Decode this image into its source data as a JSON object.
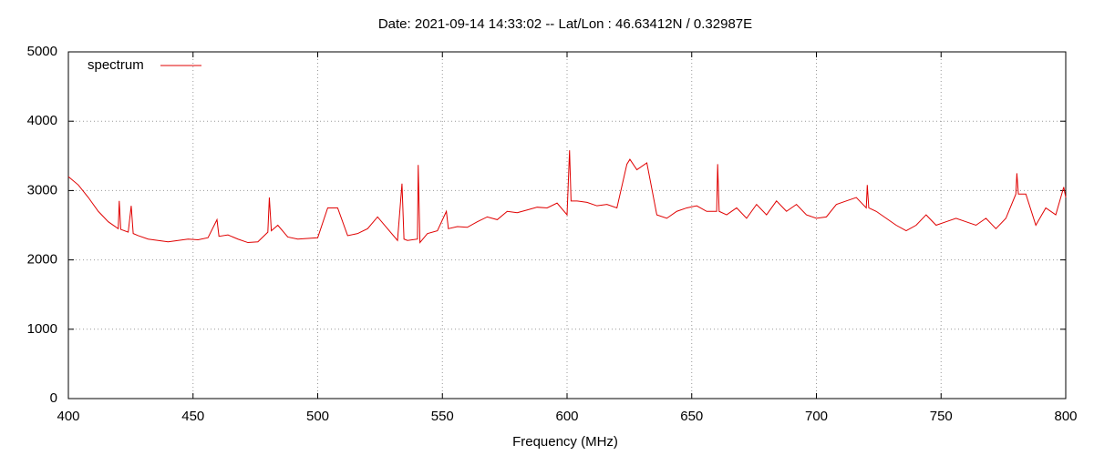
{
  "chart_data": {
    "type": "line",
    "title": "Date: 2021-09-14 14:33:02  --  Lat/Lon : 46.63412N / 0.32987E",
    "xlabel": "Frequency (MHz)",
    "x": [
      400,
      404,
      408,
      412,
      416,
      420,
      420.4,
      421,
      424,
      425.2,
      426,
      428,
      432,
      436,
      440,
      444,
      448,
      452,
      456,
      459.6,
      460.4,
      464,
      468,
      472,
      476,
      480,
      480.6,
      481.4,
      484,
      488,
      492,
      496,
      500,
      504,
      508,
      512,
      516,
      520,
      524,
      528,
      532,
      533.8,
      534.6,
      536,
      540,
      540.3,
      541,
      544,
      548,
      551.6,
      552.4,
      556,
      560,
      564,
      568,
      572,
      576,
      580,
      584,
      588,
      592,
      596,
      600,
      601,
      601.6,
      604,
      608,
      612,
      616,
      620,
      624,
      625.2,
      628,
      632,
      636,
      640,
      644,
      648,
      652,
      656,
      660,
      660.4,
      661,
      664,
      668,
      672,
      676,
      680,
      684,
      688,
      692,
      696,
      700,
      704,
      708,
      712,
      716,
      720,
      720.4,
      721,
      724,
      728,
      732,
      736,
      740,
      744,
      748,
      752,
      756,
      760,
      764,
      768,
      772,
      776,
      780,
      780.4,
      781,
      784,
      788,
      792,
      796,
      799.2,
      800
    ],
    "series": [
      {
        "name": "spectrum",
        "color": "#e00000",
        "values": [
          3200,
          3080,
          2900,
          2700,
          2550,
          2450,
          2850,
          2440,
          2400,
          2780,
          2380,
          2350,
          2300,
          2280,
          2260,
          2280,
          2300,
          2290,
          2320,
          2580,
          2340,
          2360,
          2300,
          2250,
          2260,
          2400,
          2900,
          2420,
          2500,
          2330,
          2300,
          2310,
          2320,
          2750,
          2750,
          2350,
          2380,
          2450,
          2620,
          2450,
          2280,
          3100,
          2300,
          2280,
          2300,
          3370,
          2250,
          2380,
          2420,
          2700,
          2450,
          2480,
          2470,
          2550,
          2620,
          2580,
          2700,
          2680,
          2720,
          2760,
          2750,
          2820,
          2650,
          3580,
          2850,
          2850,
          2830,
          2780,
          2800,
          2750,
          3380,
          3450,
          3300,
          3400,
          2650,
          2600,
          2700,
          2750,
          2780,
          2700,
          2700,
          3380,
          2700,
          2650,
          2750,
          2600,
          2800,
          2650,
          2850,
          2700,
          2800,
          2650,
          2600,
          2620,
          2800,
          2850,
          2900,
          2750,
          3080,
          2750,
          2700,
          2600,
          2500,
          2420,
          2500,
          2650,
          2500,
          2550,
          2600,
          2550,
          2500,
          2600,
          2450,
          2600,
          2950,
          3250,
          2950,
          2950,
          2500,
          2750,
          2650,
          3050,
          2900
        ]
      }
    ],
    "xlim": [
      400,
      800
    ],
    "xticks": [
      400,
      450,
      500,
      550,
      600,
      650,
      700,
      750,
      800
    ],
    "ylim": [
      0,
      5000
    ],
    "yticks": [
      0,
      1000,
      2000,
      3000,
      4000,
      5000
    ],
    "grid": true,
    "legend": "upper left"
  }
}
